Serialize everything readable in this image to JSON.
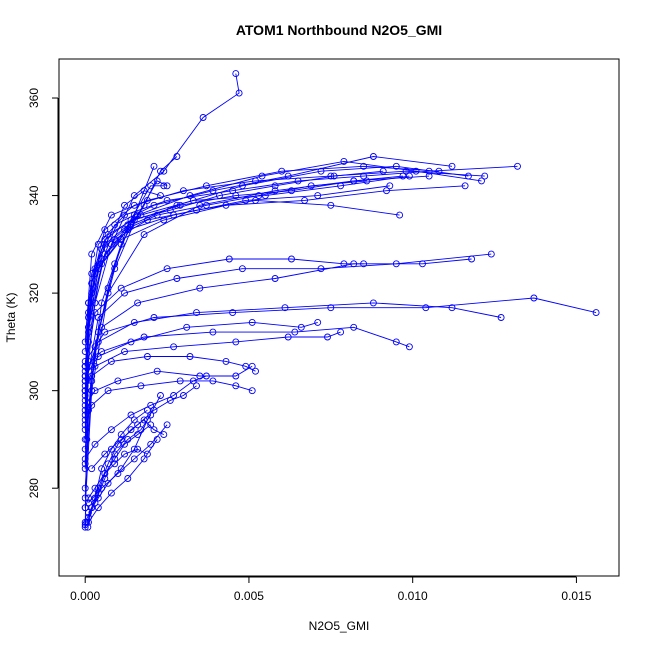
{
  "chart_data": {
    "type": "line",
    "title": "ATOM1 Northbound N2O5_GMI",
    "xlabel": "N2O5_GMI",
    "ylabel": "Theta (K)",
    "xlim": [
      -0.0008,
      0.0163
    ],
    "ylim": [
      262,
      368
    ],
    "x_ticks": [
      0.0,
      0.005,
      0.01,
      0.015
    ],
    "x_tick_labels": [
      "0.000",
      "0.005",
      "0.010",
      "0.015"
    ],
    "y_ticks": [
      280,
      300,
      320,
      340,
      360
    ],
    "y_tick_labels": [
      "280",
      "300",
      "320",
      "340",
      "360"
    ],
    "grid": false,
    "markers": "open-circle",
    "line_color": "#0000ff",
    "series": [
      {
        "x": [
          0.0,
          5e-05,
          0.0001,
          0.0003,
          0.0008,
          0.0015,
          0.0024,
          0.0036,
          0.0047,
          0.0046
        ],
        "y": [
          272.5,
          290,
          306,
          318,
          330,
          340,
          345,
          356,
          361,
          365
        ]
      },
      {
        "x": [
          0.0,
          0.0001,
          0.0004,
          0.0012,
          0.0025,
          0.0045,
          0.0065,
          0.0085,
          0.0105,
          0.0132
        ],
        "y": [
          295,
          318,
          330,
          336,
          339,
          341,
          343,
          344,
          345,
          346
        ]
      },
      {
        "x": [
          0.0,
          0.0002,
          0.0006,
          0.0015,
          0.003,
          0.0052,
          0.0075,
          0.0098,
          0.0122
        ],
        "y": [
          300,
          322,
          333,
          338,
          341,
          343,
          344,
          345,
          344
        ]
      },
      {
        "x": [
          0.0,
          0.0001,
          0.0005,
          0.0014,
          0.0028,
          0.0048,
          0.0072,
          0.0095,
          0.0117
        ],
        "y": [
          285,
          310,
          326,
          334,
          338,
          342,
          345,
          346,
          344
        ]
      },
      {
        "x": [
          0.0,
          0.0002,
          0.0007,
          0.0018,
          0.0035,
          0.0058,
          0.0082,
          0.0105
        ],
        "y": [
          276,
          300,
          320,
          332,
          338,
          341,
          343,
          344
        ]
      },
      {
        "x": [
          0.0,
          0.0003,
          0.0009,
          0.0021,
          0.0039,
          0.0062,
          0.0088,
          0.0112
        ],
        "y": [
          305,
          325,
          334,
          338,
          341,
          344,
          348,
          346
        ]
      },
      {
        "x": [
          0.0,
          0.0001,
          0.0006,
          0.0016,
          0.0032,
          0.0054,
          0.0079,
          0.0101,
          0.0121
        ],
        "y": [
          298,
          315,
          328,
          336,
          340,
          344,
          347,
          345,
          343
        ]
      },
      {
        "x": [
          0.0,
          0.0002,
          0.0008,
          0.0019,
          0.0037,
          0.006,
          0.0085,
          0.0108
        ],
        "y": [
          310,
          328,
          336,
          339,
          342,
          345,
          346,
          345
        ]
      },
      {
        "x": [
          0.0,
          0.0001,
          0.0004,
          0.0011,
          0.0024,
          0.0043,
          0.0067,
          0.0092,
          0.0116
        ],
        "y": [
          290,
          312,
          325,
          331,
          335,
          338,
          339,
          341,
          342
        ]
      },
      {
        "x": [
          0.0,
          0.0002,
          0.0006,
          0.0015,
          0.0029,
          0.0046,
          0.0063,
          0.0082,
          0.0097
        ],
        "y": [
          302,
          320,
          330,
          335,
          338,
          340,
          341,
          343,
          344
        ]
      },
      {
        "x": [
          0.0,
          0.0001,
          0.0005,
          0.0013,
          0.0027,
          0.0049,
          0.0071,
          0.0093
        ],
        "y": [
          296,
          316,
          327,
          333,
          336,
          339,
          340,
          342
        ]
      },
      {
        "x": [
          0.0,
          0.0002,
          0.0007,
          0.0017,
          0.0033,
          0.0055,
          0.0078,
          0.0099
        ],
        "y": [
          308,
          324,
          332,
          336,
          339,
          340,
          342,
          344
        ]
      },
      {
        "x": [
          0.0,
          0.0001,
          0.0003,
          0.0009,
          0.0019,
          0.0034,
          0.0052,
          0.0075,
          0.0096
        ],
        "y": [
          294,
          313,
          324,
          331,
          335,
          337,
          339,
          338,
          336
        ]
      },
      {
        "x": [
          0.0,
          0.0002,
          0.0006,
          0.0014,
          0.0026,
          0.0041,
          0.0058,
          0.0076,
          0.0091
        ],
        "y": [
          305,
          322,
          331,
          335,
          337,
          340,
          342,
          344,
          345
        ]
      },
      {
        "x": [
          0.0,
          0.0001,
          0.0005,
          0.0012,
          0.0022,
          0.0037,
          0.0053,
          0.0069,
          0.0086
        ],
        "y": [
          299,
          318,
          329,
          333,
          336,
          338,
          340,
          342,
          343
        ]
      },
      {
        "x": [
          0.0,
          0.0002,
          0.0005,
          0.0011,
          0.0018,
          0.0023,
          0.0028
        ],
        "y": [
          280,
          302,
          318,
          330,
          338,
          345,
          348
        ]
      },
      {
        "x": [
          0.0,
          0.0001,
          0.0004,
          0.0009,
          0.0015,
          0.0021
        ],
        "y": [
          278,
          296,
          312,
          326,
          336,
          346
        ]
      },
      {
        "x": [
          0.0,
          0.0002,
          0.0007,
          0.0013,
          0.002,
          0.0024
        ],
        "y": [
          284,
          305,
          321,
          334,
          342,
          342
        ]
      },
      {
        "x": [
          0.0,
          0.0003,
          0.0009,
          0.0016,
          0.0022,
          0.0025
        ],
        "y": [
          288,
          309,
          325,
          336,
          343,
          342
        ]
      },
      {
        "x": [
          0.0,
          0.0001,
          0.0006,
          0.0012,
          0.0018,
          0.0023
        ],
        "y": [
          292,
          313,
          328,
          338,
          341,
          340
        ]
      },
      {
        "x": [
          0.0,
          0.0004,
          0.0012,
          0.0028,
          0.0048,
          0.0072,
          0.0095,
          0.0124
        ],
        "y": [
          300,
          315,
          320,
          323,
          325,
          325,
          326,
          328
        ]
      },
      {
        "x": [
          0.0,
          0.0005,
          0.0016,
          0.0035,
          0.0058,
          0.0082,
          0.0103,
          0.0118
        ],
        "y": [
          302,
          313,
          318,
          321,
          323,
          326,
          326,
          327
        ]
      },
      {
        "x": [
          0.0,
          0.0003,
          0.0011,
          0.0025,
          0.0044,
          0.0063,
          0.0079,
          0.0085
        ],
        "y": [
          304,
          316,
          321,
          325,
          327,
          327,
          326,
          326
        ]
      },
      {
        "x": [
          0.0,
          0.0006,
          0.0021,
          0.0045,
          0.0075,
          0.0104,
          0.0137,
          0.0156
        ],
        "y": [
          306,
          312,
          315,
          316,
          317,
          317,
          319,
          316
        ]
      },
      {
        "x": [
          0.0,
          0.0004,
          0.0015,
          0.0034,
          0.0061,
          0.0088,
          0.0112,
          0.0127
        ],
        "y": [
          303,
          310,
          314,
          316,
          317,
          318,
          317,
          315
        ]
      },
      {
        "x": [
          0.0,
          0.0005,
          0.0018,
          0.0039,
          0.0064,
          0.0082,
          0.0095,
          0.0099
        ],
        "y": [
          305,
          308,
          311,
          312,
          312,
          313,
          310,
          309
        ]
      },
      {
        "x": [
          0.0,
          0.0003,
          0.0012,
          0.0027,
          0.0046,
          0.0062,
          0.0074,
          0.0078
        ],
        "y": [
          301,
          305,
          308,
          309,
          310,
          311,
          311,
          312
        ]
      },
      {
        "x": [
          0.0,
          0.0004,
          0.0014,
          0.0031,
          0.0051,
          0.0066,
          0.0071
        ],
        "y": [
          303,
          307,
          310,
          313,
          314,
          313,
          314
        ]
      },
      {
        "x": [
          0.0,
          0.0002,
          0.0008,
          0.0019,
          0.0032,
          0.0043,
          0.0049,
          0.0052
        ],
        "y": [
          300,
          303,
          306,
          307,
          307,
          306,
          305,
          304
        ]
      },
      {
        "x": [
          0.0,
          0.0003,
          0.001,
          0.0022,
          0.0035,
          0.0046,
          0.0051
        ],
        "y": [
          297,
          300,
          302,
          304,
          303,
          303,
          305
        ]
      },
      {
        "x": [
          0.0,
          0.0002,
          0.0007,
          0.0017,
          0.0029,
          0.0039,
          0.0046,
          0.0051
        ],
        "y": [
          293,
          297,
          300,
          301,
          302,
          302,
          301,
          300
        ]
      },
      {
        "x": [
          8e-05,
          0.0002,
          0.0004,
          0.0007,
          0.001,
          0.0014,
          0.0018,
          0.0021,
          0.0024
        ],
        "y": [
          272,
          276,
          280,
          285,
          289,
          292,
          294,
          292,
          291
        ]
      },
      {
        "x": [
          5e-05,
          0.0003,
          0.0006,
          0.0009,
          0.0013,
          0.0017,
          0.002
        ],
        "y": [
          273,
          277,
          282,
          287,
          290,
          292,
          295
        ]
      },
      {
        "x": [
          0.0001,
          0.0003,
          0.0005,
          0.0008,
          0.0011,
          0.0015,
          0.0019
        ],
        "y": [
          274,
          278,
          284,
          288,
          291,
          294,
          296
        ]
      },
      {
        "x": [
          0.0,
          0.0002,
          0.0004,
          0.0006,
          0.0009,
          0.0012,
          0.0016,
          0.002
        ],
        "y": [
          273,
          276,
          279,
          283,
          286,
          289,
          291,
          293
        ]
      },
      {
        "x": [
          0.0001,
          0.0004,
          0.0007,
          0.0011,
          0.0015,
          0.0019,
          0.0023
        ],
        "y": [
          275,
          278,
          281,
          284,
          288,
          294,
          299
        ]
      },
      {
        "x": [
          0.0,
          0.0001,
          0.0004,
          0.0008,
          0.0013,
          0.0018,
          0.0022
        ],
        "y": [
          272,
          273,
          276,
          279,
          282,
          286,
          290
        ]
      },
      {
        "x": [
          0.0002,
          0.0006,
          0.0011,
          0.0016,
          0.0021,
          0.0026,
          0.003,
          0.0034
        ],
        "y": [
          284,
          287,
          290,
          293,
          296,
          298,
          299,
          301
        ]
      },
      {
        "x": [
          0.0,
          0.0003,
          0.0008,
          0.0014,
          0.002,
          0.0027,
          0.0033,
          0.0037
        ],
        "y": [
          286,
          289,
          292,
          295,
          297,
          299,
          302,
          303
        ]
      },
      {
        "x": [
          0.0001,
          0.0005,
          0.001,
          0.0015,
          0.002,
          0.0025
        ],
        "y": [
          277,
          280,
          283,
          286,
          289,
          293
        ]
      },
      {
        "x": [
          0.0,
          0.0001,
          0.0003,
          0.0006,
          0.0009,
          0.0012,
          0.0016,
          0.0019
        ],
        "y": [
          276,
          278,
          280,
          283,
          285,
          287,
          288,
          287
        ]
      }
    ]
  }
}
